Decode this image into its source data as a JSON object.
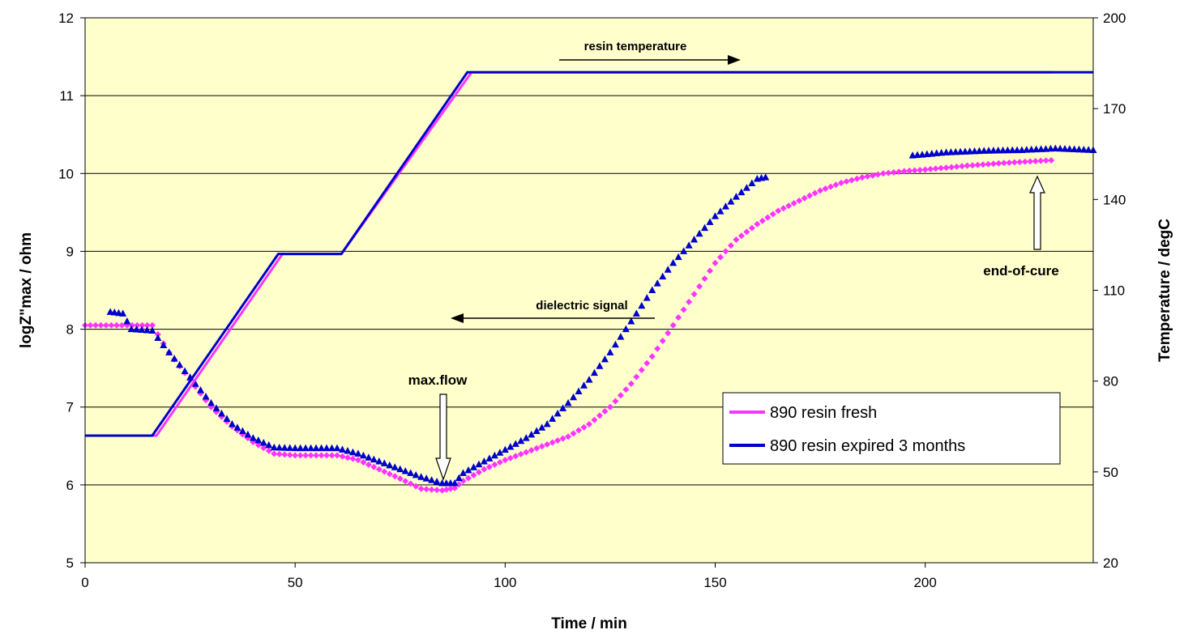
{
  "chart_data": {
    "type": "scatter",
    "title": "",
    "xlabel": "Time / min",
    "ylabel_left": "logZ\"max / ohm",
    "ylabel_right": "Temperature / degC",
    "xlim": [
      0,
      240
    ],
    "ylim_left": [
      5,
      12
    ],
    "ylim_right": [
      20,
      200
    ],
    "x_ticks": [
      "0",
      "50",
      "100",
      "150",
      "200"
    ],
    "y_left_ticks": [
      "5",
      "6",
      "7",
      "8",
      "9",
      "10",
      "11",
      "12"
    ],
    "y_right_ticks": [
      "20",
      "50",
      "80",
      "110",
      "140",
      "170",
      "200"
    ],
    "grid": "horizontal",
    "plot_background": "#ffffcc",
    "legend_position": "right-middle",
    "series": [
      {
        "name": "890 resin fresh",
        "color": "#ff33ff",
        "marker": "diamond",
        "axis": "left",
        "points": [
          [
            0,
            8.05
          ],
          [
            10,
            8.05
          ],
          [
            16,
            8.05
          ],
          [
            20,
            7.7
          ],
          [
            25,
            7.35
          ],
          [
            30,
            7.0
          ],
          [
            35,
            6.75
          ],
          [
            40,
            6.55
          ],
          [
            45,
            6.4
          ],
          [
            50,
            6.38
          ],
          [
            55,
            6.38
          ],
          [
            60,
            6.38
          ],
          [
            65,
            6.32
          ],
          [
            70,
            6.2
          ],
          [
            75,
            6.08
          ],
          [
            80,
            5.95
          ],
          [
            85,
            5.93
          ],
          [
            88,
            5.96
          ],
          [
            90,
            6.05
          ],
          [
            95,
            6.2
          ],
          [
            100,
            6.32
          ],
          [
            105,
            6.42
          ],
          [
            110,
            6.52
          ],
          [
            115,
            6.62
          ],
          [
            120,
            6.78
          ],
          [
            125,
            7.0
          ],
          [
            130,
            7.3
          ],
          [
            135,
            7.65
          ],
          [
            140,
            8.05
          ],
          [
            145,
            8.45
          ],
          [
            150,
            8.85
          ],
          [
            155,
            9.15
          ],
          [
            160,
            9.35
          ],
          [
            165,
            9.52
          ],
          [
            170,
            9.65
          ],
          [
            175,
            9.78
          ],
          [
            180,
            9.88
          ],
          [
            185,
            9.95
          ],
          [
            190,
            10.0
          ],
          [
            195,
            10.03
          ],
          [
            200,
            10.05
          ],
          [
            210,
            10.1
          ],
          [
            220,
            10.14
          ],
          [
            230,
            10.17
          ]
        ]
      },
      {
        "name": "890 resin expired 3 months",
        "color": "#0000cc",
        "marker": "triangle",
        "axis": "left",
        "points": [
          [
            6,
            8.22
          ],
          [
            9,
            8.2
          ],
          [
            11,
            8.0
          ],
          [
            16,
            7.98
          ],
          [
            20,
            7.7
          ],
          [
            25,
            7.38
          ],
          [
            30,
            7.05
          ],
          [
            35,
            6.78
          ],
          [
            40,
            6.6
          ],
          [
            45,
            6.48
          ],
          [
            50,
            6.47
          ],
          [
            55,
            6.47
          ],
          [
            60,
            6.47
          ],
          [
            65,
            6.4
          ],
          [
            70,
            6.3
          ],
          [
            75,
            6.2
          ],
          [
            80,
            6.1
          ],
          [
            85,
            6.02
          ],
          [
            88,
            6.02
          ],
          [
            90,
            6.15
          ],
          [
            95,
            6.3
          ],
          [
            100,
            6.45
          ],
          [
            105,
            6.6
          ],
          [
            110,
            6.78
          ],
          [
            115,
            7.05
          ],
          [
            120,
            7.35
          ],
          [
            125,
            7.7
          ],
          [
            130,
            8.1
          ],
          [
            135,
            8.5
          ],
          [
            140,
            8.85
          ],
          [
            145,
            9.15
          ],
          [
            150,
            9.45
          ],
          [
            155,
            9.7
          ],
          [
            160,
            9.93
          ],
          [
            162,
            9.95
          ],
          [
            197,
            10.23
          ],
          [
            205,
            10.27
          ],
          [
            214,
            10.29
          ],
          [
            223,
            10.3
          ],
          [
            231,
            10.32
          ],
          [
            240,
            10.3
          ]
        ]
      },
      {
        "name": "890 resin fresh temperature",
        "color": "#ff33ff",
        "marker": "line",
        "axis": "right",
        "points": [
          [
            0,
            62
          ],
          [
            17,
            62
          ],
          [
            47,
            122
          ],
          [
            61,
            122
          ],
          [
            92,
            182
          ],
          [
            230,
            182
          ]
        ]
      },
      {
        "name": "890 resin expired 3 months temperature",
        "color": "#0000cc",
        "marker": "line",
        "axis": "right",
        "points": [
          [
            0,
            62
          ],
          [
            16,
            62
          ],
          [
            46,
            122
          ],
          [
            61,
            122
          ],
          [
            91,
            182
          ],
          [
            240,
            182
          ]
        ]
      }
    ],
    "annotations": {
      "resin_temperature": "resin temperature",
      "dielectric_signal": "dielectric signal",
      "max_flow": "max.flow",
      "end_of_cure": "end-of-cure"
    },
    "legend": [
      "890 resin fresh",
      "890 resin expired 3 months"
    ]
  }
}
